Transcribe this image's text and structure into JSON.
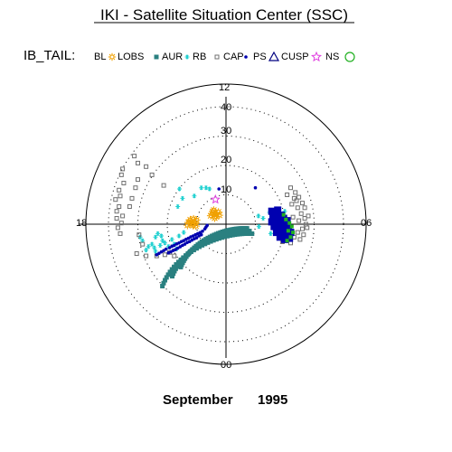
{
  "chart_data": {
    "type": "scatter",
    "title": "IKI - Satellite Situation Center (SSC)",
    "legend_prefix": "IB_TAIL:",
    "date_month": "September",
    "date_year": "1995",
    "radial_ticks": [
      "10",
      "20",
      "30",
      "40"
    ],
    "mlt_labels": {
      "top": "12",
      "right": "06",
      "bottom": "00",
      "left": "18"
    },
    "colors": {
      "bl": "#000000",
      "lobs": "#f0a000",
      "aur": "#2a8080",
      "rb": "#20d0d0",
      "cap": "#707070",
      "ps": "#0000b0",
      "cusp": "#000080",
      "ns": "#e040e0",
      "green": "#20b020",
      "grid": "#000000"
    },
    "series": [
      {
        "name": "BL",
        "marker": "none",
        "color_key": "bl",
        "points": []
      },
      {
        "name": "LOBS",
        "marker": "sun",
        "color_key": "lobs",
        "points": [
          [
            -13,
            0.5
          ],
          [
            -13.5,
            1.2
          ],
          [
            -14.2,
            0.4
          ],
          [
            -14.8,
            1.1
          ],
          [
            -15.3,
            0.2
          ],
          [
            -16.0,
            0.8
          ],
          [
            -12.5,
            1.8
          ],
          [
            -13.8,
            2.3
          ],
          [
            -15.2,
            1.9
          ],
          [
            -16.4,
            -0.5
          ],
          [
            -14.0,
            -0.6
          ],
          [
            -12.8,
            -0.8
          ],
          [
            -3.8,
            4.2
          ],
          [
            -4.5,
            5.0
          ],
          [
            -5.0,
            4.0
          ],
          [
            -5.6,
            5.4
          ],
          [
            -6.0,
            4.4
          ],
          [
            -3.2,
            5.2
          ],
          [
            -4.2,
            3.2
          ],
          [
            -6.5,
            3.6
          ],
          [
            -2.8,
            3.8
          ],
          [
            -5.2,
            6.0
          ],
          [
            -4.8,
            2.6
          ]
        ]
      },
      {
        "name": "AUR",
        "marker": "square-filled",
        "color_key": "aur",
        "points": []
      },
      {
        "name": "RB",
        "marker": "asterisk",
        "color_key": "rb",
        "points": [
          [
            -19.8,
            15.0
          ],
          [
            -10.5,
            15.5
          ],
          [
            -18.5,
            11.0
          ],
          [
            -20.5,
            7.5
          ],
          [
            -18.0,
            -3.5
          ],
          [
            -20.0,
            -5.0
          ],
          [
            -23.0,
            -6.5
          ],
          [
            -26.0,
            -8.0
          ],
          [
            -24.5,
            -9.5
          ],
          [
            -28.0,
            -9.0
          ],
          [
            -27.0,
            -7.0
          ],
          [
            -30.5,
            -10.0
          ],
          [
            -31.5,
            -8.5
          ],
          [
            -33.0,
            -9.5
          ],
          [
            -34.0,
            -11.0
          ],
          [
            -30.0,
            -11.5
          ],
          [
            -22.0,
            -8.5
          ],
          [
            -29.0,
            -4.0
          ],
          [
            -30.0,
            -5.5
          ],
          [
            -27.5,
            -5.0
          ],
          [
            -21.0,
            -10.5
          ],
          [
            -35.5,
            -7.0
          ],
          [
            -36.5,
            -5.5
          ],
          [
            -8.5,
            15.5
          ],
          [
            -7.0,
            15.0
          ],
          [
            -13.5,
            12.0
          ],
          [
            13.8,
            3.5
          ],
          [
            15.8,
            2.5
          ],
          [
            18.5,
            5.0
          ],
          [
            21.0,
            3.0
          ],
          [
            25.0,
            5.5
          ],
          [
            19.0,
            -4.0
          ],
          [
            22.5,
            -1.5
          ],
          [
            14.0,
            -1.0
          ]
        ]
      },
      {
        "name": "CAP",
        "marker": "square-open",
        "color_key": "cap",
        "points": [
          [
            -44.0,
            23.5
          ],
          [
            -44.5,
            21.0
          ],
          [
            -43.5,
            17.5
          ],
          [
            -45.5,
            14.5
          ],
          [
            -45.0,
            12.0
          ],
          [
            -47.0,
            10.5
          ],
          [
            -45.5,
            7.5
          ],
          [
            -46.5,
            5.5
          ],
          [
            -44.0,
            3.5
          ],
          [
            -46.5,
            2.5
          ],
          [
            -44.5,
            0.5
          ],
          [
            -46.0,
            -1.5
          ],
          [
            -45.0,
            -4.0
          ],
          [
            -37.5,
            26.0
          ],
          [
            -39.0,
            29.0
          ],
          [
            -34.0,
            24.5
          ],
          [
            -31.5,
            21.0
          ],
          [
            -26.5,
            16.5
          ],
          [
            -37.5,
            19.0
          ],
          [
            -38.5,
            15.5
          ],
          [
            -40.0,
            11.0
          ],
          [
            -41.0,
            7.5
          ],
          [
            -37.0,
            -4.5
          ],
          [
            -35.5,
            -8.5
          ],
          [
            -38.0,
            -12.5
          ],
          [
            -34.0,
            -13.5
          ],
          [
            -26.0,
            -13.0
          ],
          [
            -29.5,
            -13.5
          ],
          [
            -24.0,
            -12.0
          ],
          [
            -22.0,
            -13.5
          ],
          [
            27.5,
            15.5
          ],
          [
            29.5,
            13.5
          ],
          [
            31.0,
            11.5
          ],
          [
            30.0,
            10.0
          ],
          [
            32.5,
            9.0
          ],
          [
            33.5,
            7.0
          ],
          [
            30.5,
            7.0
          ],
          [
            28.0,
            8.5
          ],
          [
            32.0,
            4.5
          ],
          [
            33.5,
            2.5
          ],
          [
            31.0,
            1.5
          ],
          [
            34.0,
            0.0
          ],
          [
            32.5,
            -2.0
          ],
          [
            30.5,
            -3.5
          ],
          [
            33.0,
            -4.5
          ],
          [
            31.5,
            -6.5
          ],
          [
            29.0,
            -5.5
          ],
          [
            27.5,
            -8.0
          ],
          [
            25.5,
            -6.0
          ],
          [
            26.5,
            -3.5
          ],
          [
            24.0,
            -7.5
          ],
          [
            28.5,
            3.0
          ],
          [
            35.0,
            3.5
          ],
          [
            34.5,
            -1.5
          ],
          [
            29.0,
            11.0
          ],
          [
            26.0,
            12.5
          ],
          [
            24.5,
            2.0
          ],
          [
            23.5,
            -2.5
          ]
        ]
      },
      {
        "name": "PS",
        "marker": "dot",
        "color_key": "ps",
        "points": [
          [
            -10.5,
            -4.5
          ],
          [
            -11.5,
            -5.0
          ],
          [
            -12.5,
            -5.8
          ],
          [
            -13.5,
            -6.2
          ],
          [
            -14.5,
            -6.8
          ],
          [
            -15.5,
            -7.4
          ],
          [
            -16.5,
            -7.8
          ],
          [
            -17.5,
            -8.5
          ],
          [
            -18.5,
            -9.0
          ],
          [
            -19.5,
            -9.6
          ],
          [
            -20.5,
            -10.2
          ],
          [
            -21.5,
            -10.8
          ],
          [
            -22.5,
            -11.2
          ],
          [
            -23.5,
            -11.8
          ],
          [
            -24.5,
            -12.2
          ],
          [
            -10.0,
            -3.0
          ],
          [
            -11.0,
            -3.6
          ],
          [
            -12.0,
            -4.0
          ],
          [
            -13.0,
            -4.5
          ],
          [
            -14.0,
            -5.0
          ],
          [
            -15.0,
            -5.4
          ],
          [
            -16.0,
            -6.0
          ],
          [
            -17.0,
            -6.4
          ],
          [
            -18.0,
            -7.0
          ],
          [
            -19.0,
            -7.4
          ],
          [
            -20.0,
            -8.0
          ],
          [
            -21.0,
            -8.4
          ],
          [
            -22.0,
            -9.0
          ],
          [
            -23.0,
            -9.4
          ],
          [
            -24.0,
            -10.0
          ],
          [
            -25.5,
            -10.6
          ],
          [
            -26.5,
            -11.2
          ],
          [
            -27.5,
            -11.8
          ],
          [
            -28.5,
            -12.4
          ],
          [
            -29.5,
            -13.0
          ],
          [
            -9.0,
            -2.0
          ],
          [
            -8.5,
            -1.2
          ],
          [
            -8.0,
            -0.5
          ],
          [
            12.5,
            15.5
          ],
          [
            -3.0,
            15.0
          ]
        ]
      },
      {
        "name": "CUSP",
        "marker": "triangle-open",
        "color_key": "cusp",
        "points": []
      },
      {
        "name": "NS",
        "marker": "star-open",
        "color_key": "ns",
        "points": [
          [
            -4.5,
            10.5
          ]
        ]
      },
      {
        "name": "",
        "marker": "circle-open",
        "color_key": "green",
        "points": []
      }
    ],
    "aur_bands": [
      {
        "r0": 12.0,
        "r1": 24.0
      },
      {
        "r0": 14.0,
        "r1": 28.0
      },
      {
        "r0": 16.0,
        "r1": 32.5
      }
    ],
    "dayside_cluster": {
      "navy": [
        [
          19.5,
          5.5
        ],
        [
          20.5,
          3.5
        ],
        [
          21.5,
          4.8
        ],
        [
          22.5,
          2.5
        ],
        [
          23.5,
          3.8
        ],
        [
          21.0,
          1.0
        ],
        [
          22.5,
          0.0
        ],
        [
          24.0,
          -1.0
        ],
        [
          25.5,
          0.5
        ],
        [
          23.0,
          -2.5
        ],
        [
          25.0,
          -3.0
        ],
        [
          26.5,
          -1.5
        ],
        [
          24.0,
          -4.5
        ],
        [
          26.0,
          -5.0
        ],
        [
          27.5,
          -3.5
        ],
        [
          20.5,
          -1.0
        ],
        [
          19.5,
          1.0
        ],
        [
          22.0,
          6.0
        ],
        [
          24.5,
          2.5
        ],
        [
          26.0,
          1.5
        ],
        [
          27.0,
          -6.0
        ],
        [
          25.0,
          -6.5
        ],
        [
          23.0,
          -5.5
        ],
        [
          21.5,
          -3.5
        ],
        [
          20.0,
          2.5
        ]
      ],
      "green": [
        [
          24.5,
          4.0
        ],
        [
          25.5,
          2.0
        ],
        [
          27.0,
          0.5
        ],
        [
          28.0,
          -1.0
        ],
        [
          26.5,
          -2.8
        ],
        [
          28.5,
          -3.5
        ],
        [
          27.5,
          -5.5
        ],
        [
          26.0,
          -7.0
        ]
      ]
    }
  }
}
